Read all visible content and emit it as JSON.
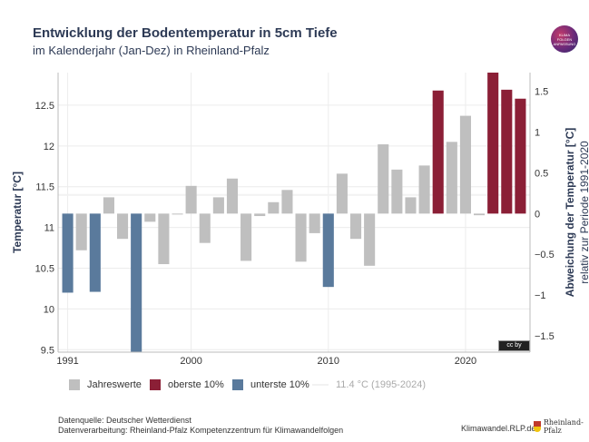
{
  "header": {
    "title": "Entwicklung der Bodentemperatur in 5cm Tiefe",
    "subtitle": "im Kalenderjahr (Jan-Dez) in Rheinland-Pfalz",
    "logo_text": [
      "KLIMA",
      "FOLGEN",
      "ANPASSUNG"
    ]
  },
  "chart_data": {
    "type": "bar",
    "x": [
      1991,
      1992,
      1993,
      1994,
      1995,
      1996,
      1997,
      1998,
      1999,
      2000,
      2001,
      2002,
      2003,
      2004,
      2005,
      2006,
      2007,
      2008,
      2009,
      2010,
      2011,
      2012,
      2013,
      2014,
      2015,
      2016,
      2017,
      2018,
      2019,
      2020,
      2021,
      2022,
      2023,
      2024
    ],
    "values": [
      10.2,
      10.72,
      10.21,
      11.37,
      10.86,
      9.47,
      11.07,
      10.55,
      11.17,
      11.51,
      10.81,
      11.37,
      11.6,
      10.59,
      11.14,
      11.31,
      11.46,
      10.58,
      10.93,
      10.27,
      11.66,
      10.86,
      10.53,
      12.02,
      11.71,
      11.37,
      11.76,
      12.68,
      12.05,
      12.37,
      11.15,
      12.9,
      12.69,
      12.58
    ],
    "baseline": 11.4,
    "baseline_label": "11.4 °C (1995-2024)",
    "categories_highlight": {
      "top10": [
        2018,
        2022,
        2023,
        2024
      ],
      "bottom10": [
        1991,
        1993,
        1996,
        2010
      ]
    },
    "colors": {
      "normal": "#bfbfbf",
      "top10": "#8b1f36",
      "bottom10": "#5a7a9c",
      "baseline": "#f2f2f2"
    },
    "ylabel": "Temperatur [°C]",
    "y2label": "Abweichung der Temperatur [°C]",
    "y2sublabel": "relativ zur Periode 1991-2020",
    "ylim": [
      9.47,
      12.9
    ],
    "y_ticks": [
      9.5,
      10,
      10.5,
      11,
      11.5,
      12,
      12.5
    ],
    "y_tick_labels": [
      "9.5",
      "10",
      "10.5",
      "11",
      "11.5",
      "12",
      "12.5"
    ],
    "y2_ticks": [
      -1.5,
      -1,
      -0.5,
      0,
      0.5,
      1,
      1.5
    ],
    "y2_tick_labels": [
      "−1.5",
      "−1",
      "−0.5",
      "0",
      "0.5",
      "1",
      "1.5"
    ],
    "y2_zero_at": 11.17,
    "x_ticks": [
      1991,
      2000,
      2010,
      2020
    ],
    "x_tick_labels": [
      "1991",
      "2000",
      "2010",
      "2020"
    ],
    "grid": true
  },
  "legend": {
    "items": [
      {
        "label": "Jahreswerte",
        "color": "#bfbfbf"
      },
      {
        "label": "oberste 10%",
        "color": "#8b1f36"
      },
      {
        "label": "unterste 10%",
        "color": "#5a7a9c"
      },
      {
        "label": "11.4 °C (1995-2024)",
        "color": "#f2f2f2",
        "line": true
      }
    ]
  },
  "footer": {
    "source": "Datenquelle: Deutscher Wetterdienst",
    "processing": "Datenverarbeitung: Rheinland-Pfalz Kompetenzzentrum für Klimawandelfolgen",
    "website": "Klimawandel.RLP.de",
    "org": "Rheinland-Pfalz",
    "license": "cc by"
  }
}
